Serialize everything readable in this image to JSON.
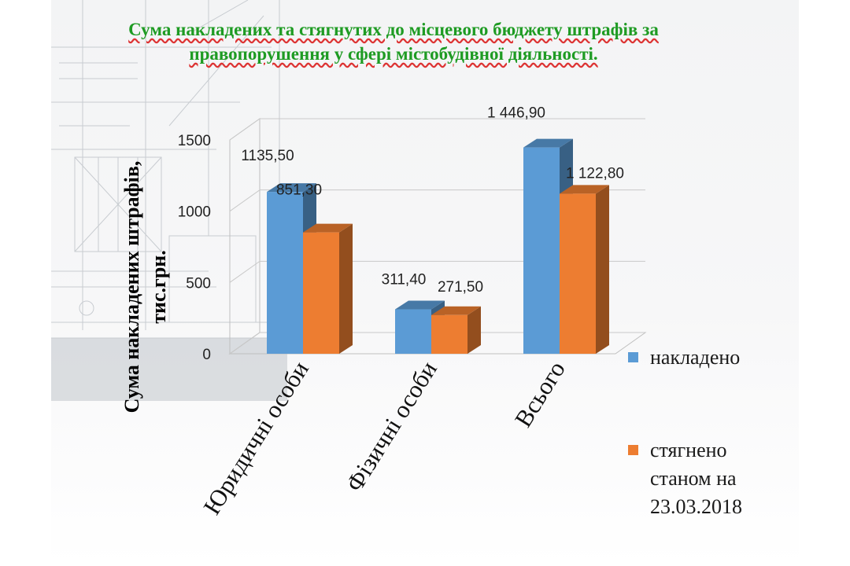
{
  "slide": {
    "title": "Сума накладених та стягнутих до місцевого бюджету штрафів за правопорушення у сфері містобудівної діяльності."
  },
  "chart_data": {
    "type": "bar",
    "title": "Сума накладених та стягнутих до місцевого бюджету штрафів за правопорушення у сфері містобудівної діяльності.",
    "ylabel": "Сума накладених штрафів, тис.грн.",
    "xlabel": "",
    "categories": [
      "Юридичні особи",
      "Фізичні особи",
      "Всього"
    ],
    "ylim": [
      0,
      1500
    ],
    "yticks": [
      0,
      500,
      1000,
      1500
    ],
    "ytick_labels": [
      "0",
      "500",
      "1000",
      "1500"
    ],
    "grid": true,
    "legend_position": "right",
    "three_d": true,
    "series": [
      {
        "name": "накладено",
        "values": [
          1135.5,
          311.4,
          1446.9
        ],
        "labels": [
          "1135,50",
          "311,40",
          "1 446,90"
        ],
        "color": "#5b9bd5"
      },
      {
        "name": "стягнено станом на 23.03.2018",
        "values": [
          851.3,
          271.5,
          1122.8
        ],
        "labels": [
          "851,30",
          "271,50",
          "1 122,80"
        ],
        "color": "#ed7d31"
      }
    ]
  },
  "legend": {
    "items": [
      {
        "lines": [
          "накладено"
        ],
        "color": "#5b9bd5"
      },
      {
        "lines": [
          "стягнено",
          "станом на",
          "23.03.2018"
        ],
        "color": "#ed7d31"
      }
    ]
  }
}
